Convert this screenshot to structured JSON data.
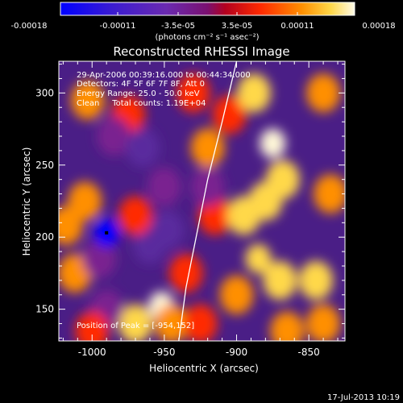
{
  "colorbar": {
    "ticks": [
      "-0.00018",
      "-0.00011",
      "-3.5e-05",
      "3.5e-05",
      "0.00011",
      "0.00018"
    ],
    "unit_label": "(photons cm⁻² s⁻¹ asec⁻²)",
    "colors": [
      "#0000ff",
      "#3c1cd0",
      "#5a2a9e",
      "#7a2090",
      "#b3001f",
      "#ff2a00",
      "#ff8f00",
      "#ffd84a",
      "#fff8d8"
    ]
  },
  "chart_data": {
    "type": "heatmap",
    "title": "Reconstructed RHESSI Image",
    "xlabel": "Heliocentric X (arcsec)",
    "ylabel": "Heliocentric Y (arcsec)",
    "xlim": [
      -1023,
      -825
    ],
    "ylim": [
      128,
      322
    ],
    "x_ticks": [
      -1000,
      -950,
      -900,
      -850
    ],
    "y_ticks": [
      150,
      200,
      250,
      300
    ],
    "x_tick_labels": [
      "-1000",
      "-950",
      "-900",
      "-850"
    ],
    "y_tick_labels": [
      "150",
      "200",
      "250",
      "300"
    ],
    "value_range": [
      -0.00018,
      0.00018
    ],
    "peak": [
      -954,
      152
    ],
    "annotations": [
      "29-Apr-2006 00:39:16.000 to 00:44:34.000",
      "Detectors: 4F 5F 6F 7F 8F, Att 0",
      "Energy Range: 25.0 - 50.0 keV",
      "Clean     Total counts: 1.19E+04"
    ],
    "peak_label": "Position of Peak = [-954,152]",
    "limb_curve": [
      [
        -940,
        128
      ],
      [
        -935,
        165
      ],
      [
        -928,
        200
      ],
      [
        -920,
        240
      ],
      [
        -910,
        280
      ],
      [
        -900,
        322
      ]
    ],
    "blobs": [
      {
        "x": -1018,
        "y": 208,
        "v": 0.00011
      },
      {
        "x": -1005,
        "y": 225,
        "v": 9e-05
      },
      {
        "x": -1012,
        "y": 175,
        "v": 8e-05
      },
      {
        "x": -995,
        "y": 185,
        "v": -4e-05
      },
      {
        "x": -990,
        "y": 203,
        "v": -0.00018
      },
      {
        "x": -1003,
        "y": 295,
        "v": 7e-05
      },
      {
        "x": -975,
        "y": 285,
        "v": 6e-05
      },
      {
        "x": -985,
        "y": 270,
        "v": -5e-05
      },
      {
        "x": -965,
        "y": 262,
        "v": -8e-05
      },
      {
        "x": -950,
        "y": 235,
        "v": -6e-05
      },
      {
        "x": -960,
        "y": 195,
        "v": -7e-05
      },
      {
        "x": -970,
        "y": 215,
        "v": 4e-05
      },
      {
        "x": -948,
        "y": 205,
        "v": -9e-05
      },
      {
        "x": -952,
        "y": 152,
        "v": 0.00018
      },
      {
        "x": -970,
        "y": 140,
        "v": 0.00012
      },
      {
        "x": -945,
        "y": 140,
        "v": 0.0001
      },
      {
        "x": -935,
        "y": 175,
        "v": 6e-05
      },
      {
        "x": -920,
        "y": 262,
        "v": 8e-05
      },
      {
        "x": -915,
        "y": 215,
        "v": 4e-05
      },
      {
        "x": -930,
        "y": 300,
        "v": 5e-05
      },
      {
        "x": -905,
        "y": 285,
        "v": 6e-05
      },
      {
        "x": -888,
        "y": 300,
        "v": 0.00012
      },
      {
        "x": -875,
        "y": 265,
        "v": 0.00016
      },
      {
        "x": -868,
        "y": 240,
        "v": 0.00014
      },
      {
        "x": -880,
        "y": 225,
        "v": 0.00013
      },
      {
        "x": -895,
        "y": 215,
        "v": 0.00012
      },
      {
        "x": -885,
        "y": 185,
        "v": 0.00015
      },
      {
        "x": -870,
        "y": 170,
        "v": 0.00014
      },
      {
        "x": -845,
        "y": 170,
        "v": 0.00013
      },
      {
        "x": -900,
        "y": 160,
        "v": 0.00011
      },
      {
        "x": -840,
        "y": 300,
        "v": 0.0001
      },
      {
        "x": -835,
        "y": 230,
        "v": 9e-05
      },
      {
        "x": -840,
        "y": 140,
        "v": 0.00011
      },
      {
        "x": -865,
        "y": 135,
        "v": 9e-05
      },
      {
        "x": -925,
        "y": 140,
        "v": 5e-05
      },
      {
        "x": -990,
        "y": 150,
        "v": -4e-05
      },
      {
        "x": -1000,
        "y": 135,
        "v": 5e-05
      },
      {
        "x": -920,
        "y": 235,
        "v": -3e-05
      }
    ]
  },
  "footer": {
    "date": "17-Jul-2013 10:19"
  }
}
